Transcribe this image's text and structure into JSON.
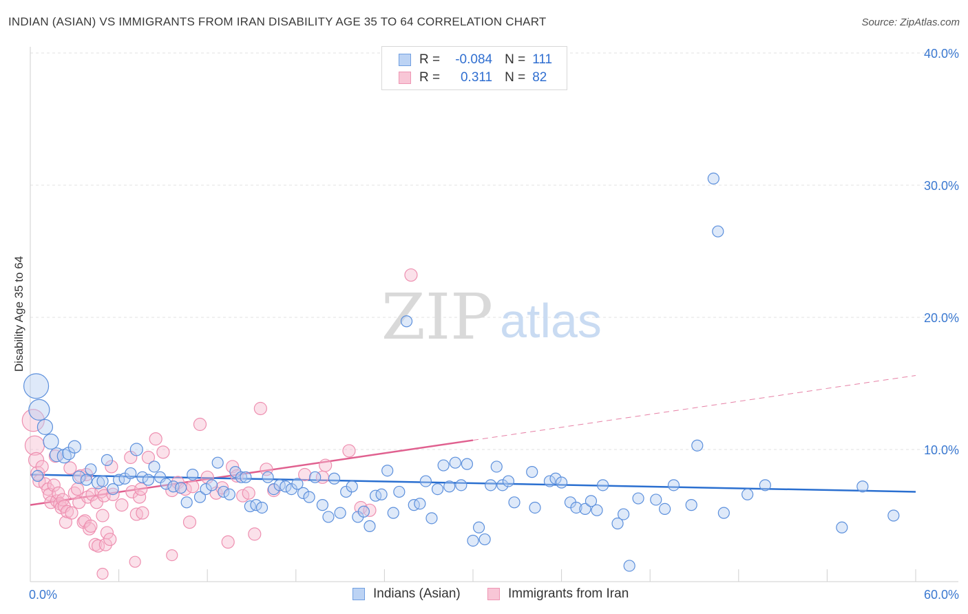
{
  "title": "INDIAN (ASIAN) VS IMMIGRANTS FROM IRAN DISABILITY AGE 35 TO 64 CORRELATION CHART",
  "source": "Source: ZipAtlas.com",
  "watermark": {
    "zip": "ZIP",
    "atlas": "atlas"
  },
  "legend": {
    "row1": {
      "r_label": "R =",
      "r_value": "-0.084",
      "n_label": "N =",
      "n_value": "111"
    },
    "row2": {
      "r_label": "R =",
      "r_value": "0.311",
      "n_label": "N =",
      "n_value": "82"
    }
  },
  "chart_data": {
    "type": "scatter",
    "title": "INDIAN (ASIAN) VS IMMIGRANTS FROM IRAN DISABILITY AGE 35 TO 64 CORRELATION CHART",
    "xlabel": "",
    "ylabel": "Disability Age 35 to 64",
    "xlim": [
      0,
      60
    ],
    "ylim": [
      0,
      40
    ],
    "x_tick_labels": [
      "0.0%",
      "60.0%"
    ],
    "y_ticks": [
      10,
      20,
      30,
      40
    ],
    "y_tick_labels": [
      "10.0%",
      "20.0%",
      "30.0%",
      "40.0%"
    ],
    "grid": true,
    "legend_position": "top-center",
    "colors": {
      "blue": "#5b8fdc",
      "blue_line": "#2a6fd0",
      "pink": "#ee8fb0",
      "pink_line": "#e0608f",
      "tick_text": "#3a78d0"
    },
    "series": [
      {
        "name": "Indians (Asian)",
        "color": "#5b8fdc",
        "trend": {
          "x0": 0,
          "y0": 8.1,
          "x1": 60,
          "y1": 6.8,
          "dashed_from": null
        },
        "points": [
          [
            0.4,
            14.8,
            18
          ],
          [
            0.6,
            13.0,
            15
          ],
          [
            1.0,
            11.7,
            11
          ],
          [
            1.4,
            10.6,
            11
          ],
          [
            1.8,
            9.6,
            10
          ],
          [
            2.3,
            9.5,
            10
          ],
          [
            2.6,
            9.7,
            9
          ],
          [
            3.0,
            10.2,
            9
          ],
          [
            0.5,
            8.0,
            8
          ],
          [
            3.3,
            7.9,
            9
          ],
          [
            3.8,
            7.7,
            8
          ],
          [
            4.1,
            8.5,
            8
          ],
          [
            4.6,
            7.5,
            9
          ],
          [
            4.9,
            7.6,
            8
          ],
          [
            5.2,
            9.2,
            8
          ],
          [
            5.6,
            7.0,
            8
          ],
          [
            6.0,
            7.7,
            8
          ],
          [
            6.4,
            7.8,
            8
          ],
          [
            6.8,
            8.2,
            8
          ],
          [
            7.2,
            10.0,
            9
          ],
          [
            7.6,
            7.9,
            8
          ],
          [
            8.0,
            7.7,
            8
          ],
          [
            8.4,
            8.7,
            8
          ],
          [
            8.8,
            7.9,
            8
          ],
          [
            9.2,
            7.4,
            8
          ],
          [
            9.7,
            7.2,
            8
          ],
          [
            10.2,
            7.1,
            8
          ],
          [
            10.6,
            6.0,
            8
          ],
          [
            11.0,
            8.1,
            8
          ],
          [
            11.5,
            6.4,
            8
          ],
          [
            11.9,
            7.0,
            8
          ],
          [
            12.3,
            7.3,
            8
          ],
          [
            12.7,
            9.0,
            8
          ],
          [
            13.1,
            6.8,
            8
          ],
          [
            13.5,
            6.6,
            8
          ],
          [
            13.9,
            8.3,
            8
          ],
          [
            14.3,
            7.9,
            8
          ],
          [
            14.6,
            7.9,
            8
          ],
          [
            14.9,
            5.7,
            8
          ],
          [
            15.3,
            5.8,
            8
          ],
          [
            15.7,
            5.6,
            8
          ],
          [
            16.1,
            7.9,
            8
          ],
          [
            16.5,
            7.0,
            8
          ],
          [
            16.9,
            7.3,
            8
          ],
          [
            17.3,
            7.2,
            8
          ],
          [
            17.7,
            7.0,
            8
          ],
          [
            18.1,
            7.4,
            8
          ],
          [
            18.5,
            6.7,
            8
          ],
          [
            18.9,
            6.4,
            8
          ],
          [
            19.3,
            7.9,
            8
          ],
          [
            19.8,
            5.8,
            8
          ],
          [
            20.2,
            4.9,
            8
          ],
          [
            20.6,
            7.8,
            8
          ],
          [
            21.0,
            5.2,
            8
          ],
          [
            21.4,
            6.8,
            8
          ],
          [
            21.8,
            7.2,
            8
          ],
          [
            22.2,
            4.9,
            8
          ],
          [
            22.6,
            5.3,
            8
          ],
          [
            23.0,
            4.2,
            8
          ],
          [
            23.4,
            6.5,
            8
          ],
          [
            23.8,
            6.6,
            8
          ],
          [
            24.2,
            8.4,
            8
          ],
          [
            24.6,
            5.2,
            8
          ],
          [
            25.0,
            6.8,
            8
          ],
          [
            25.5,
            19.7,
            8
          ],
          [
            26.0,
            5.8,
            8
          ],
          [
            26.4,
            5.9,
            8
          ],
          [
            26.8,
            7.6,
            8
          ],
          [
            27.2,
            4.8,
            8
          ],
          [
            27.6,
            7.0,
            8
          ],
          [
            28.0,
            8.8,
            8
          ],
          [
            28.4,
            7.2,
            8
          ],
          [
            28.8,
            9.0,
            8
          ],
          [
            29.2,
            7.3,
            8
          ],
          [
            29.6,
            8.9,
            8
          ],
          [
            30.0,
            3.1,
            8
          ],
          [
            30.4,
            4.1,
            8
          ],
          [
            30.8,
            3.2,
            8
          ],
          [
            31.2,
            7.3,
            8
          ],
          [
            31.6,
            8.7,
            8
          ],
          [
            32.0,
            7.3,
            8
          ],
          [
            32.4,
            7.6,
            8
          ],
          [
            32.8,
            6.0,
            8
          ],
          [
            34.0,
            8.3,
            8
          ],
          [
            34.2,
            5.6,
            8
          ],
          [
            35.2,
            7.6,
            8
          ],
          [
            35.6,
            7.8,
            8
          ],
          [
            36.0,
            7.5,
            8
          ],
          [
            36.6,
            6.0,
            8
          ],
          [
            37.0,
            5.6,
            8
          ],
          [
            37.6,
            5.5,
            8
          ],
          [
            38.0,
            6.1,
            8
          ],
          [
            38.4,
            5.4,
            8
          ],
          [
            38.8,
            7.3,
            8
          ],
          [
            39.8,
            4.4,
            8
          ],
          [
            40.2,
            5.1,
            8
          ],
          [
            40.6,
            1.2,
            8
          ],
          [
            41.2,
            6.3,
            8
          ],
          [
            42.4,
            6.2,
            8
          ],
          [
            43.0,
            5.5,
            8
          ],
          [
            43.6,
            7.3,
            8
          ],
          [
            44.8,
            5.8,
            8
          ],
          [
            45.2,
            10.3,
            8
          ],
          [
            46.3,
            30.5,
            8
          ],
          [
            46.6,
            26.5,
            8
          ],
          [
            47.0,
            5.2,
            8
          ],
          [
            48.6,
            6.6,
            8
          ],
          [
            49.8,
            7.3,
            8
          ],
          [
            55.0,
            4.1,
            8
          ],
          [
            56.4,
            7.2,
            8
          ],
          [
            58.5,
            5.0,
            8
          ]
        ]
      },
      {
        "name": "Immigrants from Iran",
        "color": "#ee8fb0",
        "trend": {
          "x0": 0,
          "y0": 5.8,
          "x1": 60,
          "y1": 15.6,
          "dashed_from": 30
        },
        "points": [
          [
            0.2,
            12.2,
            16
          ],
          [
            0.3,
            10.3,
            14
          ],
          [
            0.4,
            9.2,
            11
          ],
          [
            0.5,
            8.2,
            10
          ],
          [
            0.6,
            7.6,
            9
          ],
          [
            0.8,
            8.7,
            9
          ],
          [
            1.0,
            7.4,
            9
          ],
          [
            1.2,
            7.0,
            9
          ],
          [
            1.3,
            6.6,
            9
          ],
          [
            1.4,
            6.0,
            9
          ],
          [
            1.6,
            7.3,
            9
          ],
          [
            1.7,
            9.5,
            9
          ],
          [
            1.8,
            6.1,
            9
          ],
          [
            1.9,
            6.7,
            9
          ],
          [
            2.0,
            5.9,
            9
          ],
          [
            2.1,
            5.6,
            9
          ],
          [
            2.2,
            6.2,
            9
          ],
          [
            2.3,
            5.7,
            9
          ],
          [
            2.4,
            4.5,
            9
          ],
          [
            2.5,
            5.3,
            9
          ],
          [
            2.7,
            8.6,
            9
          ],
          [
            2.8,
            5.2,
            9
          ],
          [
            3.0,
            6.7,
            9
          ],
          [
            3.2,
            7.0,
            9
          ],
          [
            3.3,
            6.0,
            9
          ],
          [
            3.4,
            8.0,
            9
          ],
          [
            3.6,
            4.5,
            9
          ],
          [
            3.7,
            4.6,
            9
          ],
          [
            3.8,
            8.1,
            9
          ],
          [
            3.9,
            6.4,
            9
          ],
          [
            4.0,
            4.0,
            9
          ],
          [
            4.1,
            4.2,
            9
          ],
          [
            4.2,
            6.6,
            9
          ],
          [
            4.4,
            2.8,
            9
          ],
          [
            4.5,
            6.0,
            9
          ],
          [
            4.6,
            2.7,
            9
          ],
          [
            4.8,
            6.8,
            9
          ],
          [
            4.9,
            5.0,
            9
          ],
          [
            5.0,
            6.5,
            9
          ],
          [
            5.1,
            2.8,
            9
          ],
          [
            5.2,
            3.7,
            9
          ],
          [
            5.4,
            3.2,
            9
          ],
          [
            5.5,
            8.7,
            9
          ],
          [
            5.6,
            6.6,
            9
          ],
          [
            4.9,
            0.6,
            8
          ],
          [
            6.2,
            5.8,
            9
          ],
          [
            6.8,
            9.4,
            9
          ],
          [
            6.9,
            6.8,
            9
          ],
          [
            7.2,
            5.1,
            9
          ],
          [
            7.4,
            6.4,
            9
          ],
          [
            7.5,
            7.0,
            9
          ],
          [
            7.6,
            5.2,
            9
          ],
          [
            8.0,
            9.4,
            9
          ],
          [
            8.5,
            10.8,
            9
          ],
          [
            9.0,
            9.8,
            9
          ],
          [
            9.6,
            6.9,
            9
          ],
          [
            10.0,
            7.5,
            9
          ],
          [
            10.5,
            7.0,
            9
          ],
          [
            10.8,
            4.5,
            9
          ],
          [
            11.0,
            7.2,
            9
          ],
          [
            11.5,
            11.9,
            9
          ],
          [
            12.0,
            7.9,
            9
          ],
          [
            12.6,
            6.7,
            9
          ],
          [
            13.0,
            7.1,
            9
          ],
          [
            13.4,
            3.0,
            9
          ],
          [
            13.7,
            8.7,
            9
          ],
          [
            14.0,
            8.0,
            9
          ],
          [
            14.4,
            6.5,
            9
          ],
          [
            14.8,
            6.7,
            9
          ],
          [
            15.2,
            3.6,
            9
          ],
          [
            15.6,
            13.1,
            9
          ],
          [
            16.0,
            8.5,
            9
          ],
          [
            7.1,
            1.5,
            8
          ],
          [
            9.6,
            2.0,
            8
          ],
          [
            18.6,
            8.1,
            9
          ],
          [
            20.0,
            8.8,
            9
          ],
          [
            21.6,
            9.9,
            9
          ],
          [
            22.4,
            5.6,
            9
          ],
          [
            23.0,
            5.4,
            9
          ],
          [
            25.8,
            23.2,
            9
          ],
          [
            19.8,
            7.9,
            9
          ],
          [
            16.5,
            6.9,
            9
          ]
        ]
      }
    ]
  },
  "bottom_legend": {
    "item1": "Indians (Asian)",
    "item2": "Immigrants from Iran"
  }
}
